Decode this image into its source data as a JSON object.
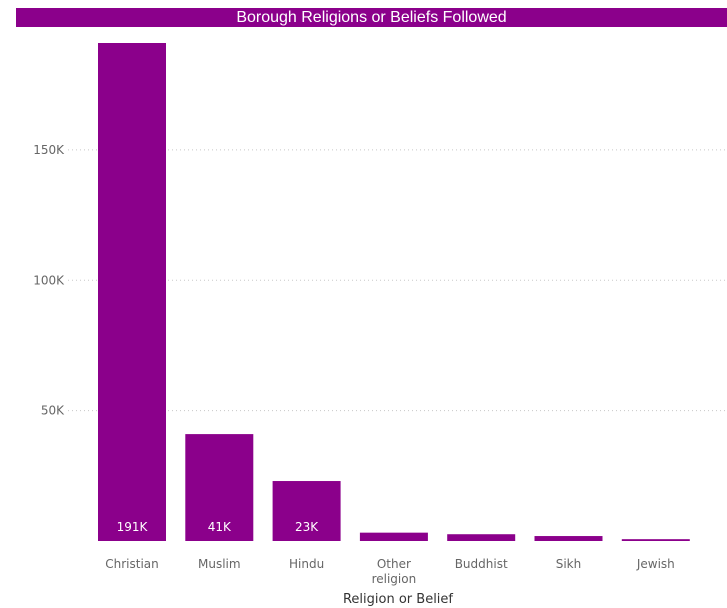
{
  "chart_data": {
    "type": "bar",
    "title": "Borough Religions or Beliefs Followed",
    "xlabel": "Religion or Belief",
    "ylabel": "",
    "categories": [
      "Christian",
      "Muslim",
      "Hindu",
      "Other religion",
      "Buddhist",
      "Sikh",
      "Jewish"
    ],
    "values": [
      191000,
      41000,
      23000,
      3200,
      2600,
      1900,
      700
    ],
    "data_labels": [
      "191K",
      "41K",
      "23K",
      "",
      "",
      "",
      ""
    ],
    "y_ticks": [
      50000,
      100000,
      150000
    ],
    "y_tick_labels": [
      "50K",
      "100K",
      "150K"
    ],
    "ylim": [
      0,
      191000
    ],
    "grid": true,
    "colors": {
      "bar": "#8b008b",
      "title_bg": "#8b008b",
      "grid": "#c8c8c8"
    }
  }
}
